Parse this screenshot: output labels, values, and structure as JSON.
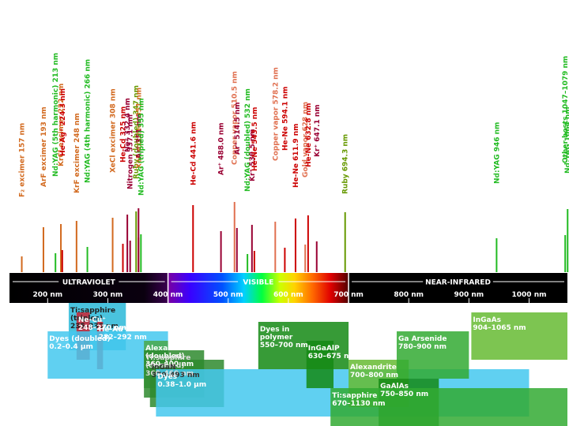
{
  "chart_data": {
    "type": "spectrum",
    "x_unit": "nm",
    "xlim": [
      100,
      1100
    ],
    "x_ticks": [
      200,
      300,
      400,
      500,
      600,
      700,
      800,
      900,
      1000
    ],
    "x_tick_labels": [
      "200 nm",
      "300 nm",
      "400 nm",
      "500 nm",
      "600 nm",
      "700 nm",
      "800 nm",
      "900 nm",
      "1000 nm"
    ],
    "regions": [
      {
        "name": "ULTRAVIOLET",
        "from": 100,
        "to": 400
      },
      {
        "name": "VISIBLE",
        "from": 400,
        "to": 700
      },
      {
        "name": "NEAR-INFRARED",
        "from": 700,
        "to": 1100
      }
    ],
    "lines": [
      {
        "label": "F₂ excimer  157 nm",
        "wavelength": 157,
        "color": "#d2691e"
      },
      {
        "label": "ArF excimer  193 nm",
        "wavelength": 193,
        "color": "#d2691e"
      },
      {
        "label": "Nd:YAG (5th harmonic)  213 nm",
        "wavelength": 213,
        "color": "#22bb22"
      },
      {
        "label": "KrCl excimer  222 nm",
        "wavelength": 222,
        "color": "#d2691e"
      },
      {
        "label": "He-Ag⁺  224.3 nm",
        "wavelength": 224.3,
        "color": "#cc0000"
      },
      {
        "label": "KrF excimer  248 nm",
        "wavelength": 248,
        "color": "#d2691e"
      },
      {
        "label": "Nd:YAG (4th harmonic)  266 nm",
        "wavelength": 266,
        "color": "#22bb22"
      },
      {
        "label": "XeCl excimer  308 nm",
        "wavelength": 308,
        "color": "#d2691e"
      },
      {
        "label": "He-Cd  325 nm",
        "wavelength": 325,
        "color": "#cc0000"
      },
      {
        "label": "Ne⁺  332.4 nm",
        "wavelength": 332.4,
        "color": "#990033"
      },
      {
        "label": "Nitrogen  337.1 nm",
        "wavelength": 337.1,
        "color": "#990033"
      },
      {
        "label": "Ruby (doubled)  347 nm",
        "wavelength": 347,
        "color": "#669900"
      },
      {
        "label": "XeF excimer  351 nm",
        "wavelength": 351,
        "color": "#d2691e"
      },
      {
        "label": "Ar⁺  351 nm",
        "wavelength": 351,
        "color": "#990033"
      },
      {
        "label": "Nd:YAG (tripled)  355 nm",
        "wavelength": 355,
        "color": "#22bb22"
      },
      {
        "label": "He-Cd  441.6 nm",
        "wavelength": 441.6,
        "color": "#cc0000"
      },
      {
        "label": "Ar⁺  488.0 nm",
        "wavelength": 488,
        "color": "#990033"
      },
      {
        "label": "Copper vapor  510.5 nm",
        "wavelength": 510.5,
        "color": "#e07050"
      },
      {
        "label": "Ar⁺  514.5 nm",
        "wavelength": 514.5,
        "color": "#990033"
      },
      {
        "label": "Nd:YAG (doubled)  532 nm",
        "wavelength": 532,
        "color": "#22bb22"
      },
      {
        "label": "Kr⁺  539.5 nm",
        "wavelength": 539.5,
        "color": "#990033"
      },
      {
        "label": "He-Ne  543.5 nm",
        "wavelength": 543.5,
        "color": "#cc0000"
      },
      {
        "label": "Copper vapor  578.2 nm",
        "wavelength": 578.2,
        "color": "#e07050"
      },
      {
        "label": "He-Ne  594.1 nm",
        "wavelength": 594.1,
        "color": "#cc0000"
      },
      {
        "label": "He-Ne  611.9 nm",
        "wavelength": 611.9,
        "color": "#cc0000"
      },
      {
        "label": "Gold vapor  628 nm",
        "wavelength": 628,
        "color": "#e07050"
      },
      {
        "label": "He-Ne  632.8 nm",
        "wavelength": 632.8,
        "color": "#cc0000"
      },
      {
        "label": "Kr⁺  647.1 nm",
        "wavelength": 647.1,
        "color": "#990033"
      },
      {
        "label": "Ruby  694.3 nm",
        "wavelength": 694.3,
        "color": "#669900"
      },
      {
        "label": "Nd:YAG  946 nm",
        "wavelength": 946,
        "color": "#22bb22"
      },
      {
        "label": "Nd:YAG  1064 nm",
        "wavelength": 1064,
        "color": "#22bb22"
      },
      {
        "label": "Other hosts  1047–1079 nm",
        "wavelength": 1060,
        "color": "#22bb22"
      }
    ],
    "bands": [
      {
        "label": [
          "Ti:sapphire",
          "(triples)",
          "235–330 nm"
        ],
        "from": 235,
        "to": 330,
        "color": "#2ab8d8",
        "text_color": "#222222"
      },
      {
        "label": [
          "Ne-Cu⁺",
          "248–270 nm"
        ],
        "from": 248,
        "to": 270,
        "color": "#cc2233",
        "text_color": "#ffffff"
      },
      {
        "label": [
          "He-Au⁺",
          "282–292 nm"
        ],
        "from": 282,
        "to": 292,
        "color": "#cc2233",
        "text_color": "#ffffff"
      },
      {
        "label": [
          "Dyes (doubled)",
          "0.2–0.4 µm"
        ],
        "from": 200,
        "to": 400,
        "color": "#44c8ee",
        "text_color": "#ffffff"
      },
      {
        "label": [
          "Alexandrite",
          "(doubled)",
          "360–400 nm"
        ],
        "from": 360,
        "to": 400,
        "color": "#4aa84a",
        "text_color": "#ffffff"
      },
      {
        "label": [
          "Ti:sapphire",
          "(doubled)",
          "360–460 nm"
        ],
        "from": 360,
        "to": 460,
        "color": "#2e8a2e",
        "text_color": "#dddddd"
      },
      {
        "label": [
          "InGaN",
          "370–493 nm"
        ],
        "from": 370,
        "to": 493,
        "color": "#2e8a2e",
        "text_color": "#333333"
      },
      {
        "label": [
          "Dyes",
          "0.38–1.0 µm"
        ],
        "from": 380,
        "to": 1000,
        "color": "#44c8ee",
        "text_color": "#ffffff"
      },
      {
        "label": [
          "Dyes in",
          "polymer",
          "550–700 nm"
        ],
        "from": 550,
        "to": 700,
        "color": "#148a14",
        "text_color": "#ffffff"
      },
      {
        "label": [
          "InGaAlP",
          "630–675 nm"
        ],
        "from": 630,
        "to": 675,
        "color": "#148a14",
        "text_color": "#ffffff"
      },
      {
        "label": [
          "Alexandrite",
          "700–800 nm"
        ],
        "from": 700,
        "to": 800,
        "color": "#66bb33",
        "text_color": "#ffffff"
      },
      {
        "label": [
          "GaAlAs",
          "750–850 nm"
        ],
        "from": 750,
        "to": 850,
        "color": "#148a14",
        "text_color": "#ffffff"
      },
      {
        "label": [
          "Ga Arsenide",
          "780–900 nm"
        ],
        "from": 780,
        "to": 900,
        "color": "#33aa33",
        "text_color": "#ffffff"
      },
      {
        "label": [
          "Ti:sapphire",
          "670–1130 nm"
        ],
        "from": 670,
        "to": 1130,
        "color": "#33aa33",
        "text_color": "#ffffff"
      },
      {
        "label": [
          "InGaAs",
          "904–1065 nm"
        ],
        "from": 904,
        "to": 1065,
        "color": "#66bb33",
        "text_color": "#ffffff"
      }
    ]
  }
}
